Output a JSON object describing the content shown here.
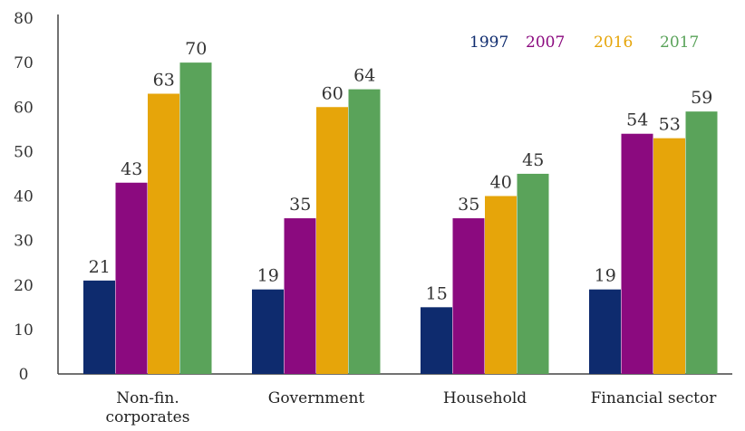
{
  "chart_data": {
    "type": "bar",
    "categories": [
      "Non-fin.\ncorporates",
      "Government",
      "Household",
      "Financial sector"
    ],
    "series": [
      {
        "name": "1997",
        "color": "#0e2b6e",
        "values": [
          21,
          19,
          15,
          19
        ]
      },
      {
        "name": "2007",
        "color": "#8b0a7f",
        "values": [
          43,
          35,
          35,
          54
        ]
      },
      {
        "name": "2016",
        "color": "#e6a50a",
        "values": [
          63,
          60,
          40,
          53
        ]
      },
      {
        "name": "2017",
        "color": "#5aa35a",
        "values": [
          70,
          64,
          45,
          59
        ]
      }
    ],
    "yticks": [
      "0",
      "10",
      "20",
      "30",
      "40",
      "50",
      "60",
      "70",
      "80"
    ],
    "ylim": [
      0,
      80
    ],
    "grid": false,
    "legend_position": "top-right",
    "show_data_labels": true
  }
}
